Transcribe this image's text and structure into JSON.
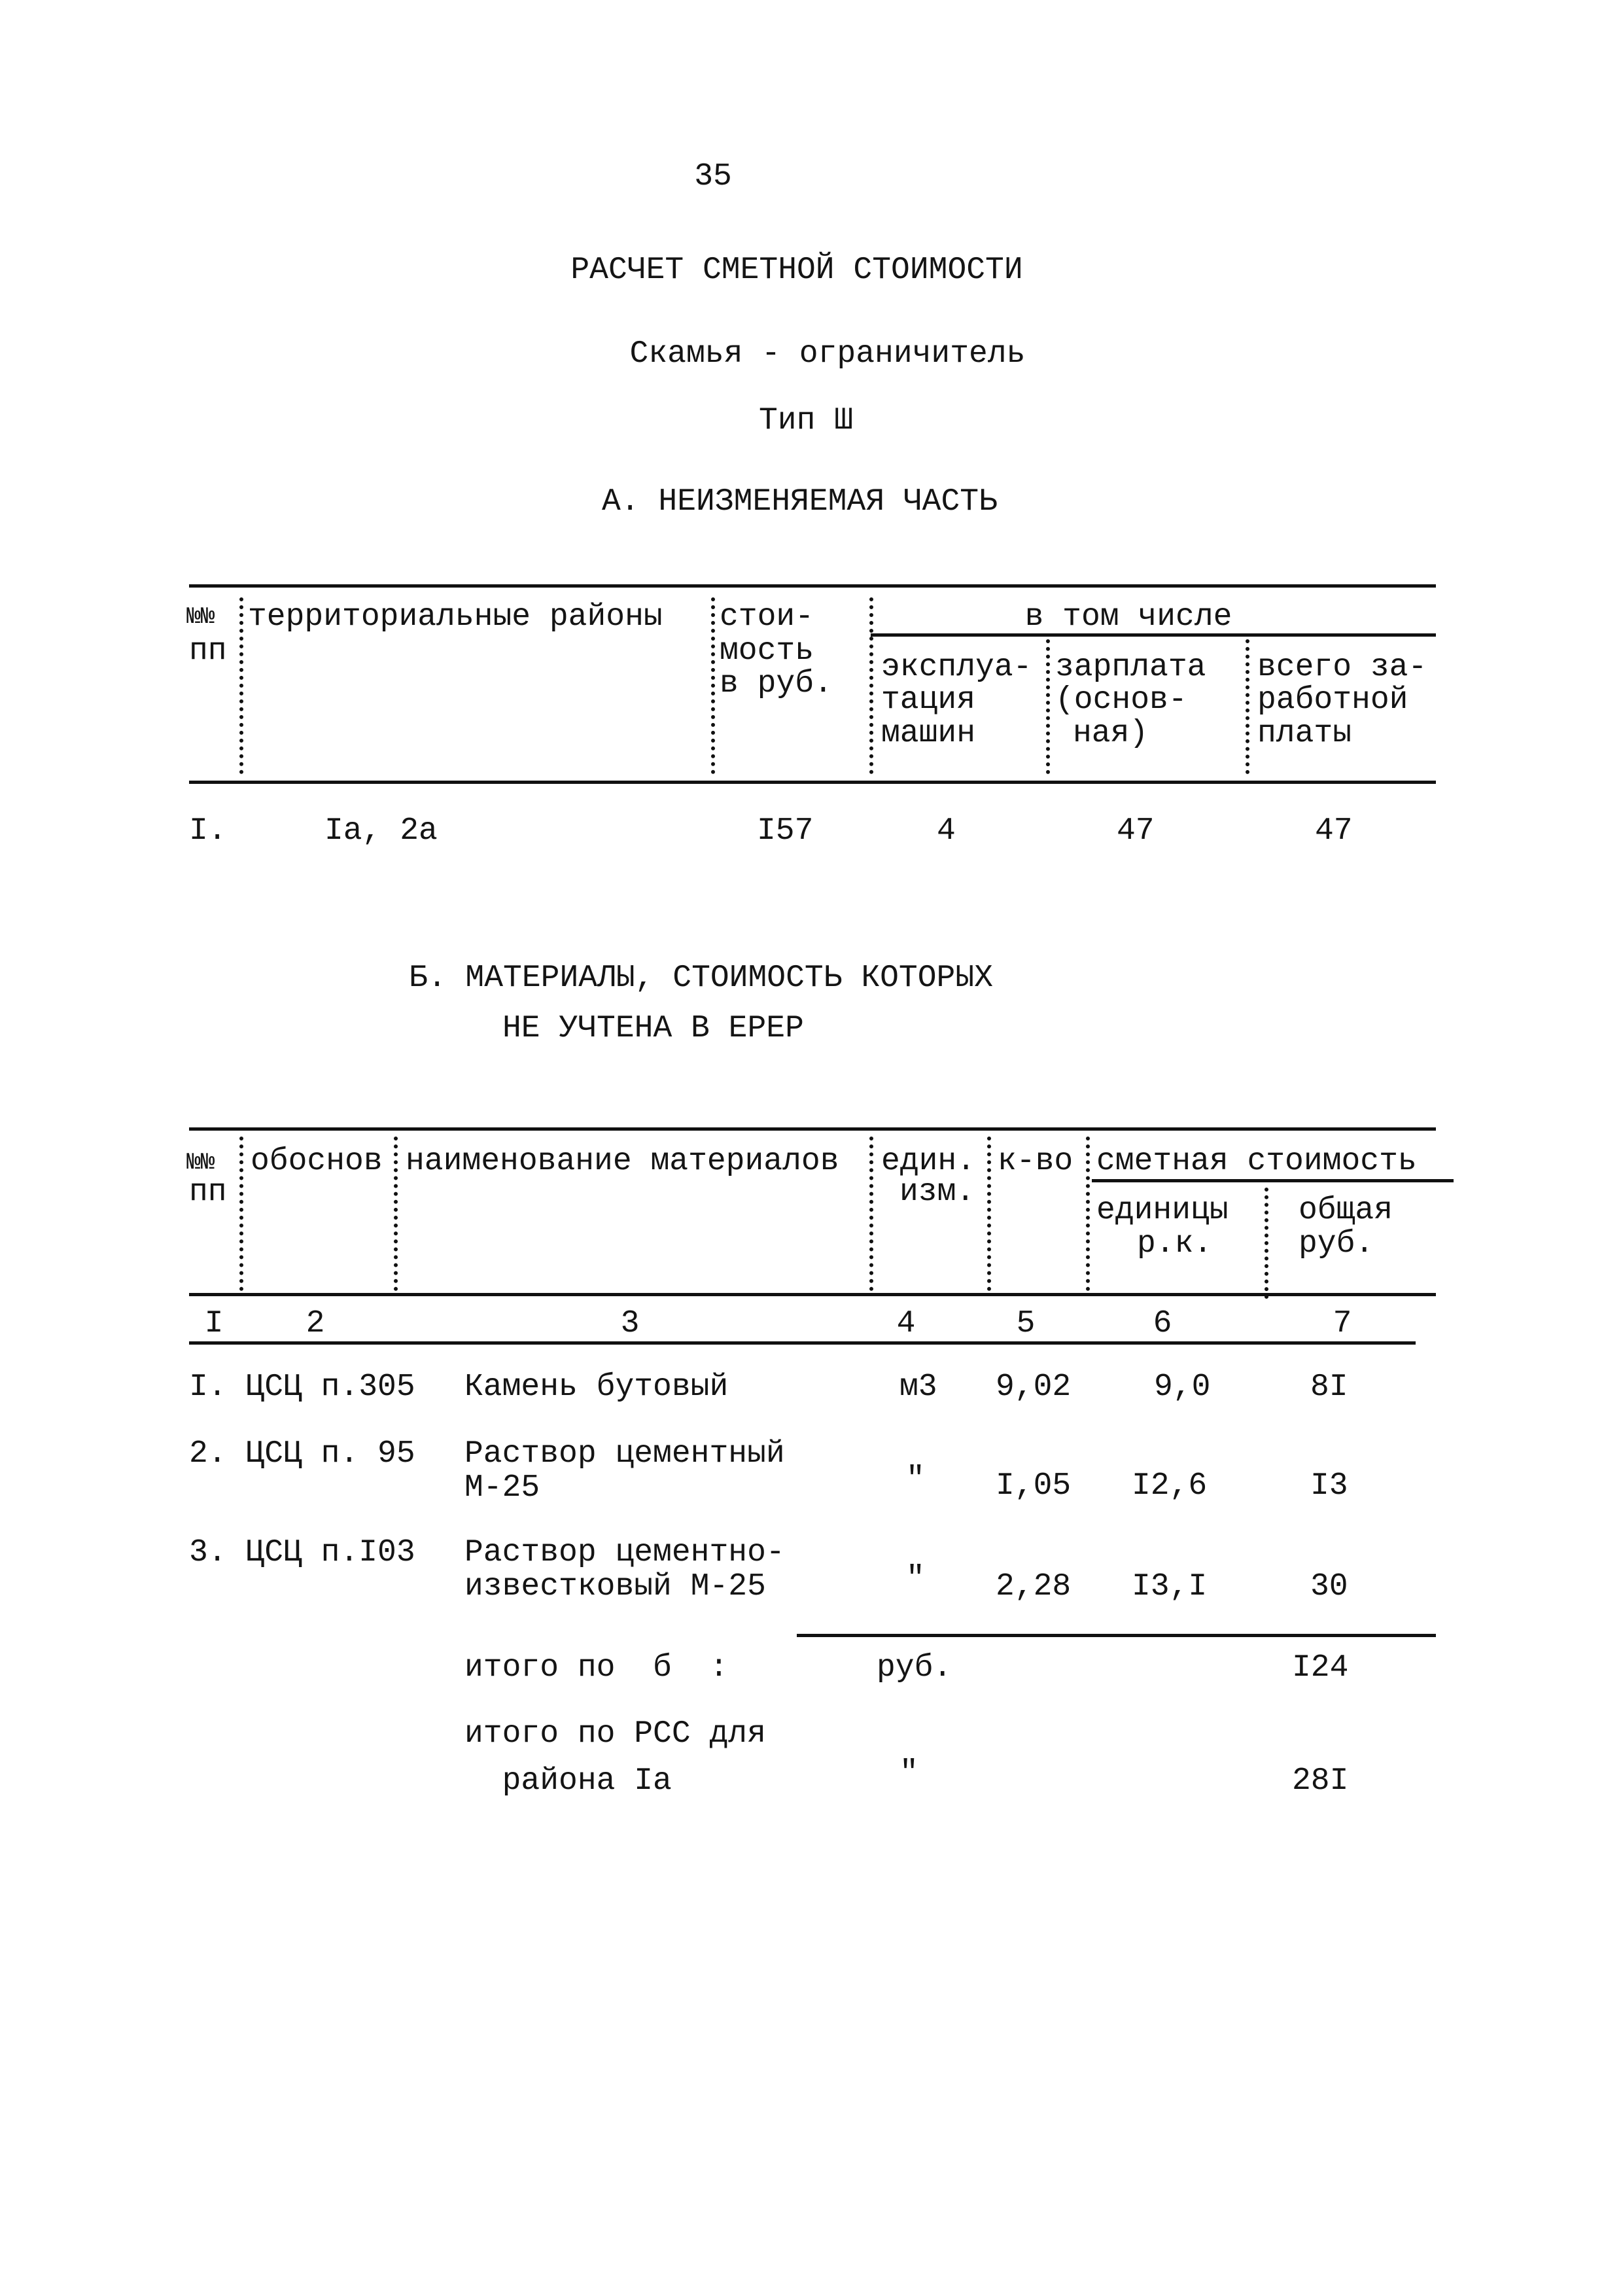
{
  "page_number": "35",
  "title": "РАСЧЕТ СМЕТНОЙ СТОИМОСТИ",
  "subtitle": "Скамья - ограничитель",
  "type": "Тип Ш",
  "section_a": {
    "heading": "А. НЕИЗМЕНЯЕМАЯ ЧАСТЬ",
    "headers": {
      "num": [
        "№№",
        "пп"
      ],
      "regions": "территориальные районы",
      "cost": [
        "стои-",
        "мость",
        "в руб."
      ],
      "including": "в том числе",
      "machines": [
        "эксплуа-",
        "тация",
        "машин"
      ],
      "salary": [
        "зарплата",
        "(основ-",
        "ная)"
      ],
      "total_salary": [
        "всего за-",
        "работной",
        "платы"
      ]
    },
    "rows": [
      {
        "num": "I.",
        "regions": "Ia, 2a",
        "cost": "I57",
        "machines": "4",
        "salary": "47",
        "total_salary": "47"
      }
    ]
  },
  "section_b": {
    "heading": [
      "Б. МАТЕРИАЛЫ, СТОИМОСТЬ КОТОРЫХ",
      "НЕ УЧТЕНА В ЕРЕР"
    ],
    "headers": {
      "num": [
        "№№",
        "пп"
      ],
      "basis": "обоснов",
      "name": "наименование материалов",
      "unit": [
        "един.",
        "изм."
      ],
      "qty": "к-во",
      "estimated_cost": "сметная стоимость",
      "unit_cost": [
        "единицы",
        "р.к."
      ],
      "total_cost": [
        "общая",
        "руб."
      ]
    },
    "column_numbers": [
      "I",
      "2",
      "3",
      "4",
      "5",
      "6",
      "7"
    ],
    "rows": [
      {
        "label": "I. ЦСЦ п.305",
        "name": [
          "Камень бутовый"
        ],
        "unit": "м3",
        "qty": "9,02",
        "unit_cost": "9,0",
        "total": "8I"
      },
      {
        "label": "2. ЦСЦ п. 95",
        "name": [
          "Раствор цементный",
          "М-25"
        ],
        "unit": "\"",
        "qty": "I,05",
        "unit_cost": "I2,6",
        "total": "I3"
      },
      {
        "label": "3. ЦСЦ п.I03",
        "name": [
          "Раствор цементно-",
          "известковый М-25"
        ],
        "unit": "\"",
        "qty": "2,28",
        "unit_cost": "I3,I",
        "total": "30"
      }
    ],
    "totals": [
      {
        "label": [
          "итого по  б  :"
        ],
        "unit": "руб.",
        "total": "I24"
      },
      {
        "label": [
          "итого по РСС для",
          "  района Ia"
        ],
        "unit": "\"",
        "total": "28I"
      }
    ]
  }
}
